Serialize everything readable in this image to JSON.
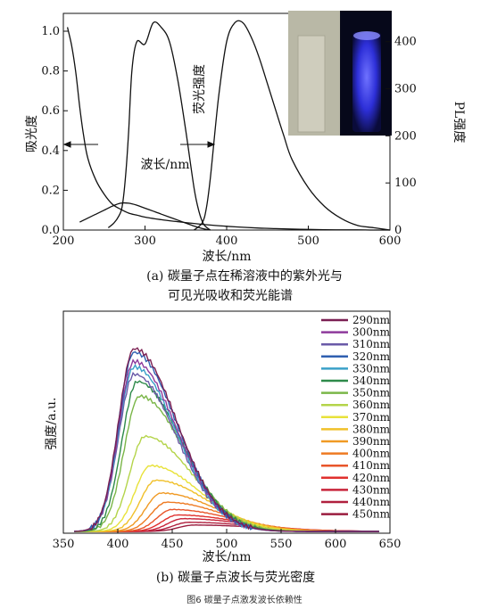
{
  "figure_title": "图6  碳量子点激发波长依赖性",
  "chart_data": [
    {
      "type": "line",
      "caption_line1": "(a) 碳量子点在稀溶液中的紫外光与",
      "caption_line2": "可见光吸收和荧光能谱",
      "xlabel": "波长/nm",
      "ylabel_left": "吸光度",
      "ylabel_right": "PL强度",
      "annotation_mid": "波长/nm",
      "annotation_pl": "荧光强度",
      "xlim": [
        200,
        600
      ],
      "ylim_left": [
        0,
        1.0
      ],
      "ylim_right": [
        0,
        460
      ],
      "x_ticks": [
        "200",
        "300",
        "400",
        "500",
        "600"
      ],
      "y_ticks_left": [
        "0.0",
        "0.2",
        "0.4",
        "0.6",
        "0.8",
        "1.0"
      ],
      "y_ticks_right": [
        "0",
        "100",
        "200",
        "300",
        "400"
      ],
      "inset_images": [
        "vial-daylight",
        "vial-uv-blue-glow"
      ],
      "series": [
        {
          "axis": "left",
          "x": [
            205,
            210,
            215,
            220,
            225,
            230,
            240,
            250,
            260,
            270,
            280,
            290,
            300,
            320,
            340,
            360,
            380,
            400,
            420,
            440,
            460,
            480,
            500,
            520,
            540,
            560,
            580,
            600
          ],
          "y": [
            1.02,
            0.93,
            0.8,
            0.62,
            0.47,
            0.36,
            0.25,
            0.18,
            0.13,
            0.105,
            0.085,
            0.075,
            0.065,
            0.052,
            0.042,
            0.033,
            0.025,
            0.019,
            0.014,
            0.01,
            0.007,
            0.005,
            0.003,
            0.002,
            0.001,
            0.001,
            0.0,
            0.0
          ]
        },
        {
          "axis": "left",
          "x": [
            220,
            230,
            240,
            250,
            260,
            270,
            280,
            290,
            300,
            310,
            320,
            330,
            340,
            350,
            360,
            370,
            380
          ],
          "y": [
            0.04,
            0.06,
            0.08,
            0.1,
            0.12,
            0.135,
            0.135,
            0.125,
            0.11,
            0.095,
            0.08,
            0.065,
            0.05,
            0.035,
            0.02,
            0.008,
            0.0
          ]
        },
        {
          "axis": "right",
          "x": [
            255,
            262,
            268,
            272,
            276,
            280,
            284,
            290,
            300,
            310,
            320,
            330,
            340,
            350,
            360,
            366,
            372,
            380
          ],
          "y": [
            5,
            15,
            30,
            50,
            110,
            210,
            340,
            400,
            395,
            440,
            430,
            400,
            320,
            210,
            90,
            40,
            12,
            0
          ]
        },
        {
          "axis": "right",
          "x": [
            360,
            370,
            375,
            380,
            390,
            400,
            410,
            420,
            430,
            440,
            450,
            460,
            470,
            480,
            500,
            520,
            540,
            560,
            580,
            600
          ],
          "y": [
            0,
            15,
            45,
            110,
            280,
            400,
            440,
            440,
            410,
            365,
            310,
            255,
            200,
            150,
            90,
            50,
            25,
            10,
            5,
            0
          ]
        }
      ]
    },
    {
      "type": "line",
      "caption": "(b) 碳量子点波长与荧光密度",
      "xlabel": "波长/nm",
      "ylabel": "强度/a.u.",
      "xlim": [
        350,
        650
      ],
      "x_ticks": [
        "350",
        "400",
        "450",
        "500",
        "550",
        "600",
        "650"
      ],
      "series": [
        {
          "name": "290nm",
          "color": "#7b1f52",
          "peak_x": 415,
          "peak_y": 1.0
        },
        {
          "name": "300nm",
          "color": "#8e3a9c",
          "peak_x": 415,
          "peak_y": 0.93
        },
        {
          "name": "310nm",
          "color": "#6a5aa8",
          "peak_x": 415,
          "peak_y": 0.86
        },
        {
          "name": "320nm",
          "color": "#2f5fb0",
          "peak_x": 415,
          "peak_y": 0.98
        },
        {
          "name": "330nm",
          "color": "#3aa0c8",
          "peak_x": 415,
          "peak_y": 0.9
        },
        {
          "name": "340nm",
          "color": "#2e8a4a",
          "peak_x": 418,
          "peak_y": 0.82
        },
        {
          "name": "350nm",
          "color": "#7ab648",
          "peak_x": 420,
          "peak_y": 0.74
        },
        {
          "name": "360nm",
          "color": "#b4d44a",
          "peak_x": 425,
          "peak_y": 0.52
        },
        {
          "name": "370nm",
          "color": "#e8e23a",
          "peak_x": 430,
          "peak_y": 0.36
        },
        {
          "name": "380nm",
          "color": "#f0c02a",
          "peak_x": 435,
          "peak_y": 0.28
        },
        {
          "name": "390nm",
          "color": "#f09a24",
          "peak_x": 440,
          "peak_y": 0.21
        },
        {
          "name": "400nm",
          "color": "#ee7a22",
          "peak_x": 445,
          "peak_y": 0.16
        },
        {
          "name": "410nm",
          "color": "#e8552a",
          "peak_x": 450,
          "peak_y": 0.12
        },
        {
          "name": "420nm",
          "color": "#e0302e",
          "peak_x": 455,
          "peak_y": 0.09
        },
        {
          "name": "430nm",
          "color": "#c8243a",
          "peak_x": 460,
          "peak_y": 0.07
        },
        {
          "name": "440nm",
          "color": "#b0203e",
          "peak_x": 465,
          "peak_y": 0.05
        },
        {
          "name": "450nm",
          "color": "#9a1c3e",
          "peak_x": 470,
          "peak_y": 0.035
        }
      ]
    }
  ]
}
